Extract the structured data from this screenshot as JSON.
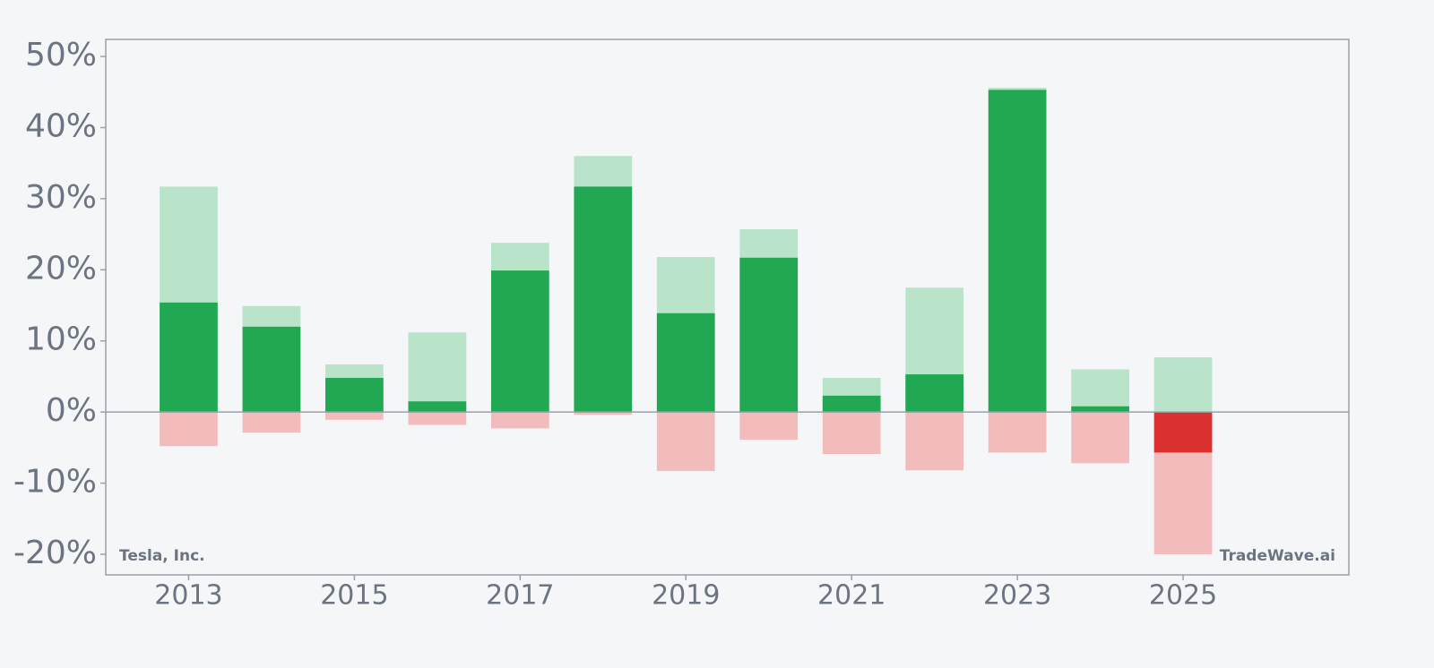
{
  "chart_data": {
    "type": "bar",
    "annotations": [
      "Tesla, Inc.",
      "TradeWave.ai"
    ],
    "x": [
      2013,
      2014,
      2015,
      2016,
      2017,
      2018,
      2019,
      2020,
      2021,
      2022,
      2023,
      2024,
      2025
    ],
    "series": [
      {
        "color": "#22a853",
        "negative_color": "#dc3030",
        "values": [
          15.4,
          12.0,
          4.8,
          1.5,
          19.9,
          31.7,
          13.9,
          21.7,
          2.3,
          5.3,
          45.3,
          0.8,
          -5.7
        ]
      },
      {
        "color": "#b9e4c9",
        "values": [
          31.7,
          14.9,
          6.7,
          11.2,
          23.8,
          36.0,
          21.8,
          25.7,
          4.8,
          17.5,
          45.6,
          6.0,
          7.7
        ]
      },
      {
        "color": "#f3bcbc",
        "values": [
          -4.8,
          -2.9,
          -1.1,
          -1.8,
          -2.3,
          -0.4,
          -8.3,
          -3.9,
          -5.9,
          -8.2,
          -5.7,
          -7.2,
          -20.0
        ]
      }
    ],
    "xlim": [
      2012,
      2027
    ],
    "xticks": [
      2013,
      2015,
      2017,
      2019,
      2021,
      2023,
      2025
    ],
    "ylim": [
      -22.9,
      52.4
    ],
    "yticks": [
      {
        "value": -20,
        "label": "-20%"
      },
      {
        "value": -10,
        "label": "-10%"
      },
      {
        "value": 0,
        "label": "0%"
      },
      {
        "value": 10,
        "label": "10%"
      },
      {
        "value": 20,
        "label": "20%"
      },
      {
        "value": 30,
        "label": "30%"
      },
      {
        "value": 40,
        "label": "40%"
      },
      {
        "value": 50,
        "label": "50%"
      }
    ]
  }
}
